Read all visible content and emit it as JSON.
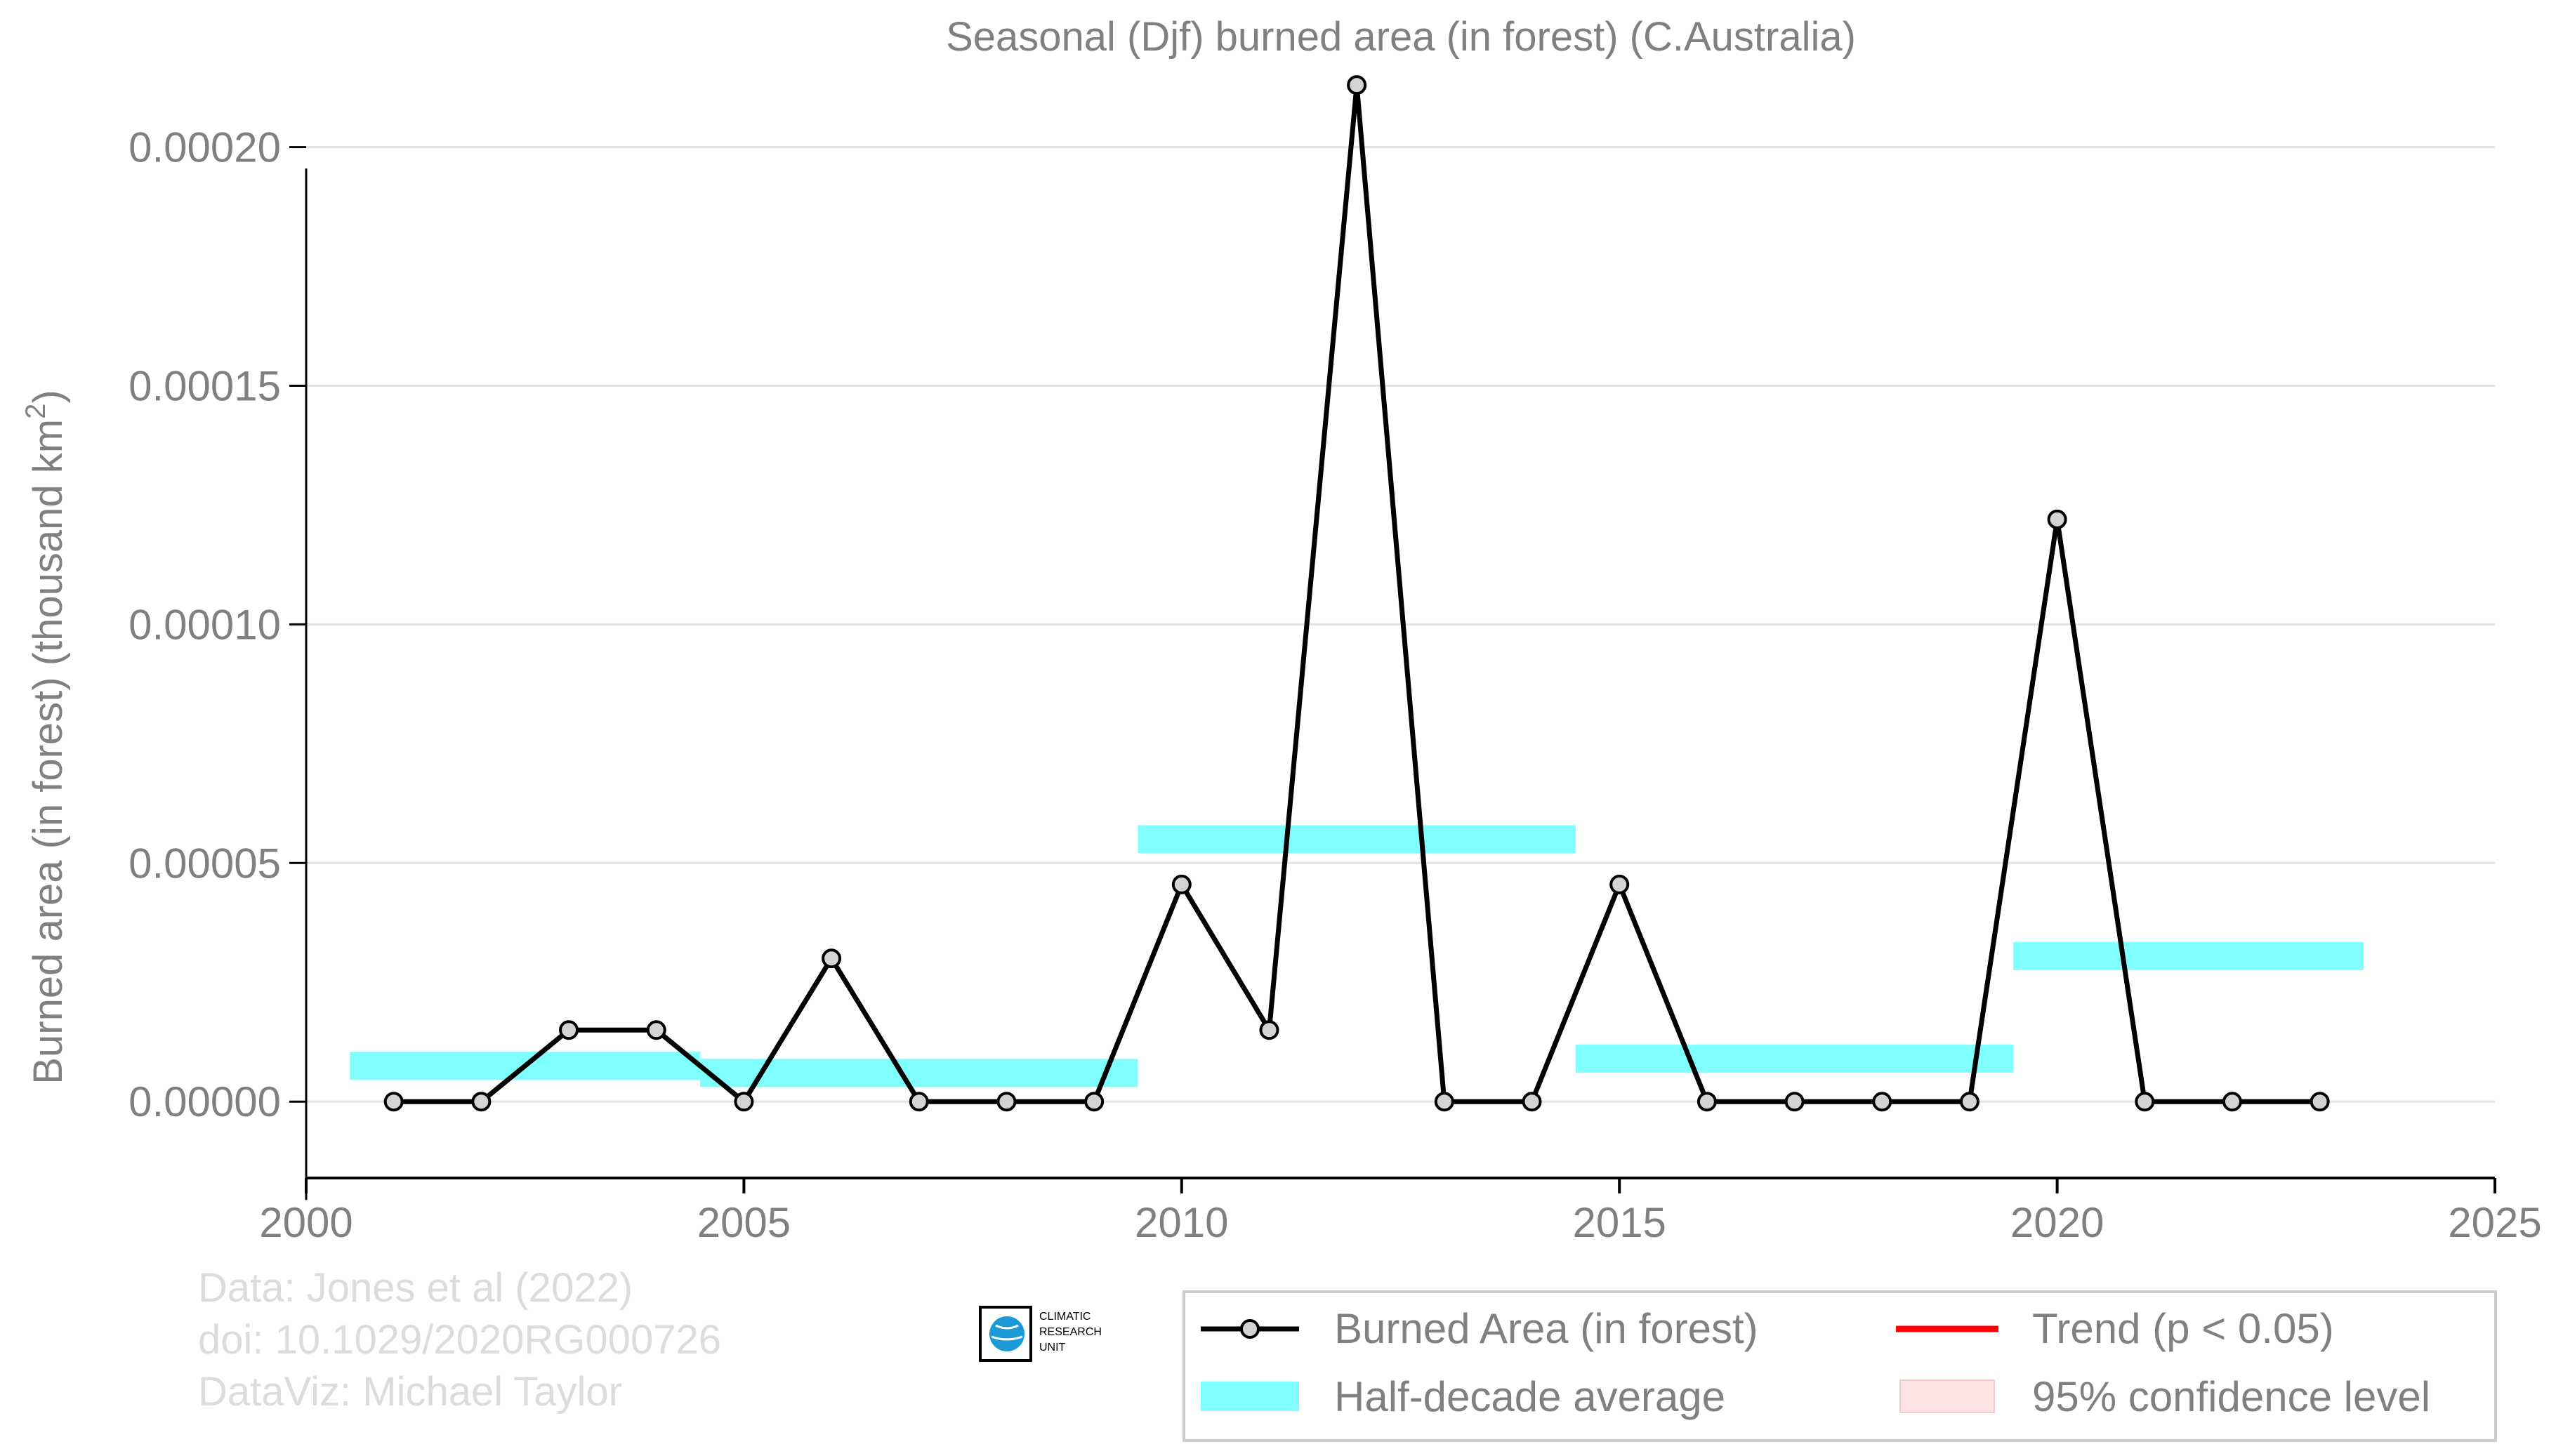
{
  "chart_data": {
    "type": "line",
    "title": "Seasonal (Djf) burned area (in forest) (C.Australia)",
    "ylabel": "Burned area (in forest) (thousand km",
    "ylabel_sup": "2",
    "ylabel_end": ")",
    "xlabel": "",
    "xlim": [
      2000,
      2025
    ],
    "ylim": [
      -1.6e-05,
      0.000222
    ],
    "x_ticks": [
      2000,
      2005,
      2010,
      2015,
      2020,
      2025
    ],
    "x_tick_labels": [
      "2000",
      "2005",
      "2010",
      "2015",
      "2020",
      "2025"
    ],
    "y_ticks": [
      0,
      5e-05,
      0.0001,
      0.00015,
      0.0002
    ],
    "y_tick_labels": [
      "0.00000",
      "0.00005",
      "0.00010",
      "0.00015",
      "0.00020"
    ],
    "grid": true,
    "series": [
      {
        "name": "Burned Area (in forest)",
        "color": "#000000",
        "marker_fill": "#d3d3d3",
        "x": [
          2001,
          2002,
          2003,
          2004,
          2005,
          2006,
          2007,
          2008,
          2009,
          2010,
          2011,
          2012,
          2013,
          2014,
          2015,
          2016,
          2017,
          2018,
          2019,
          2020,
          2021,
          2022,
          2023
        ],
        "y": [
          0,
          0,
          1.5e-05,
          1.5e-05,
          0,
          3e-05,
          0,
          0,
          0,
          4.55e-05,
          1.5e-05,
          0.000213,
          0,
          0,
          4.55e-05,
          0,
          0,
          0,
          0,
          0.000122,
          0,
          0,
          0
        ]
      }
    ],
    "half_decade_average": {
      "name": "Half-decade average",
      "color": "#00ffff",
      "segments": [
        {
          "x0": 2000.5,
          "x1": 2004.5,
          "y": 7.5e-06
        },
        {
          "x0": 2004.5,
          "x1": 2009.5,
          "y": 6e-06
        },
        {
          "x0": 2009.5,
          "x1": 2014.5,
          "y": 5.5e-05
        },
        {
          "x0": 2014.5,
          "x1": 2019.5,
          "y": 9e-06
        },
        {
          "x0": 2019.5,
          "x1": 2023.5,
          "y": 3.05e-05
        }
      ]
    },
    "legend": {
      "placement": "bottom-right",
      "entries": [
        {
          "label": "Burned Area (in forest)",
          "kind": "line-marker",
          "color": "#000000"
        },
        {
          "label": "Trend (p < 0.05)",
          "kind": "line",
          "color": "#ff0000"
        },
        {
          "label": "Half-decade average",
          "kind": "band",
          "color": "#00ffff"
        },
        {
          "label": "95% confidence level",
          "kind": "band",
          "color": "#ffc0c0"
        }
      ]
    },
    "credits": [
      "Data: Jones et al (2022)",
      "doi: 10.1029/2020RG000726",
      "DataViz: Michael Taylor"
    ],
    "logo_text": [
      "CLIMATIC",
      "RESEARCH",
      "UNIT"
    ]
  }
}
